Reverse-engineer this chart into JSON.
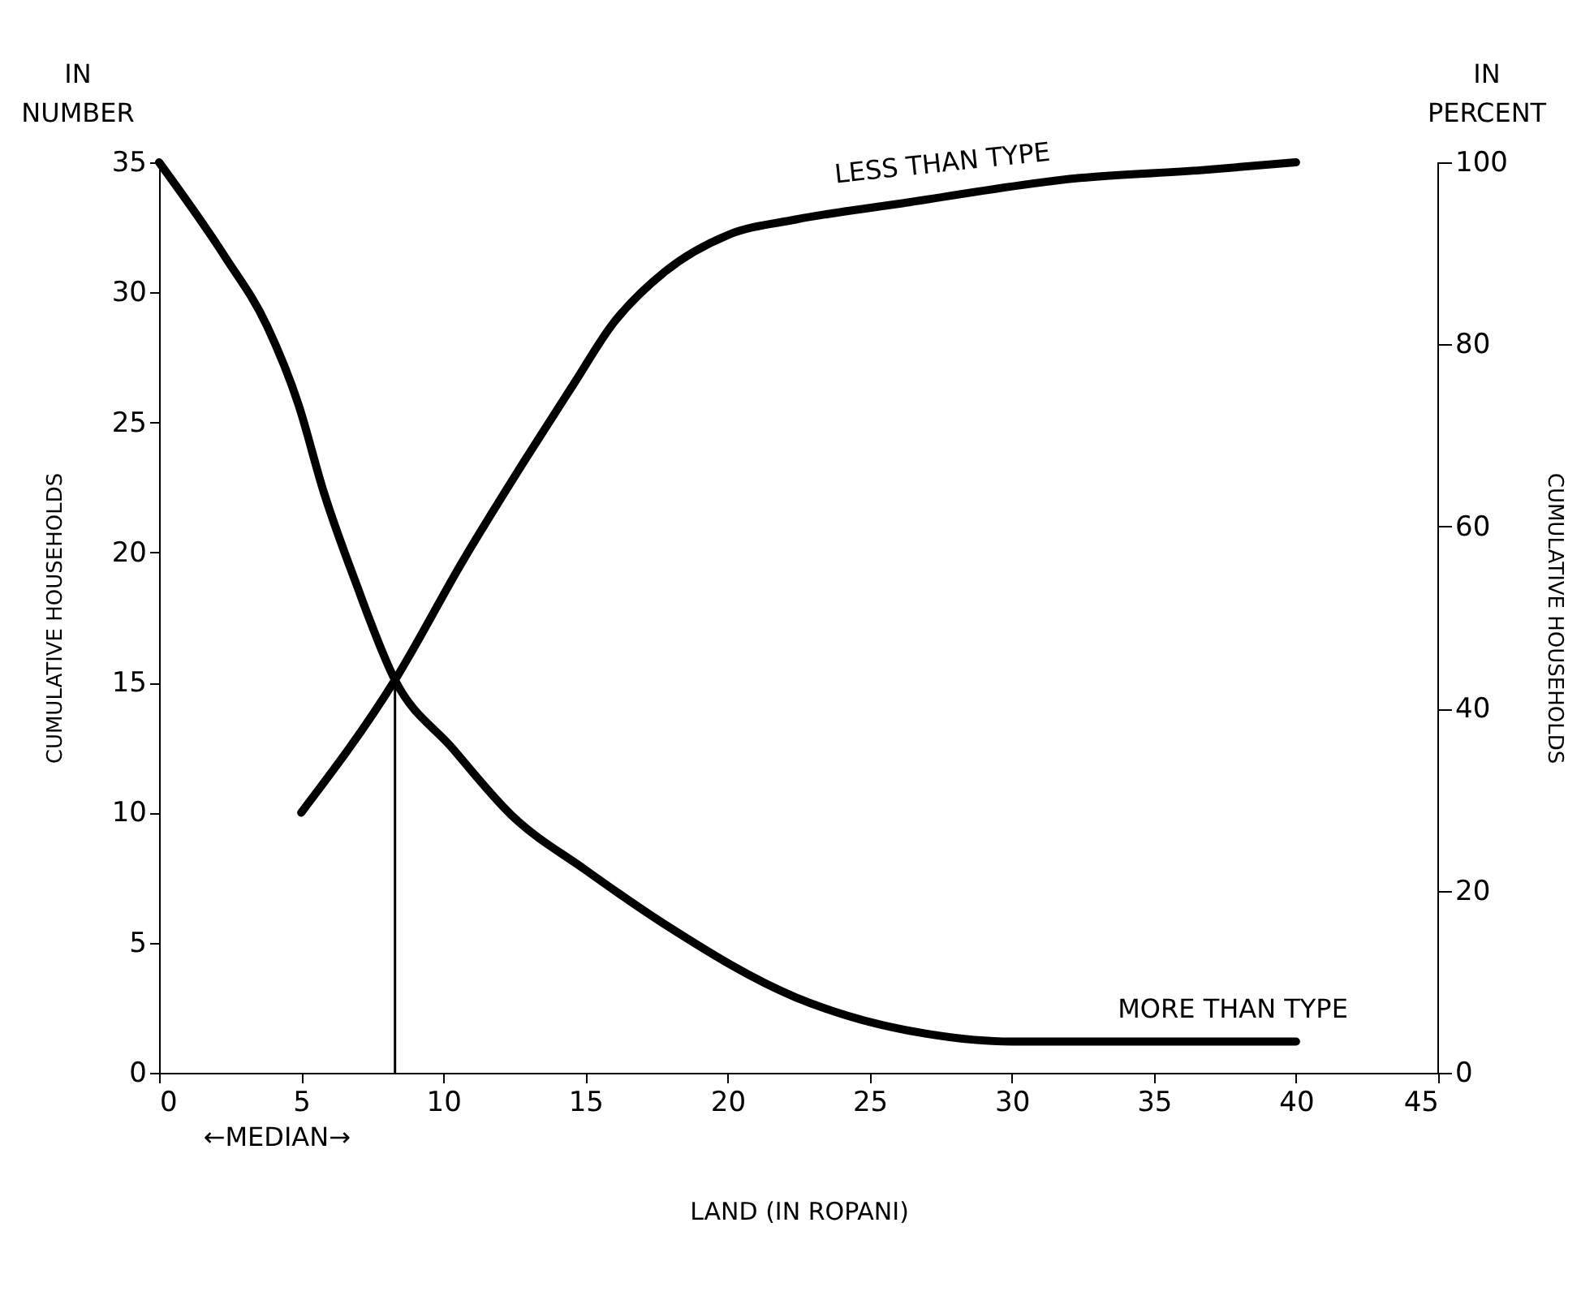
{
  "chart_data": {
    "type": "line",
    "xlabel": "LAND (IN ROPANI)",
    "ylabel": "CUMULATIVE HOUSEHOLDS",
    "y2label": "CUMULATIVE HOUSEHOLDS",
    "annotations": [
      "IN NUMBER",
      "IN PERCENT"
    ],
    "series": [
      {
        "name": "LESS THAN TYPE",
        "color": "#000000",
        "x": [
          5,
          8.3,
          10.7,
          12.9,
          14.6,
          15.9,
          17.8,
          20,
          22.4,
          26,
          32.4,
          36.7,
          40
        ],
        "values": [
          10,
          15.1,
          19.7,
          23.6,
          26.5,
          28.7,
          30.8,
          32.2,
          32.8,
          33.4,
          34.4,
          34.7,
          35
        ]
      },
      {
        "name": "MORE THAN TYPE",
        "color": "#000000",
        "x": [
          0,
          2.3,
          3.8,
          4.9,
          5.8,
          6.9,
          8.3,
          10.3,
          12.4,
          15,
          17.8,
          22.4,
          24.2,
          27,
          30,
          35,
          40
        ],
        "values": [
          35,
          31.4,
          28.7,
          25.7,
          22.3,
          18.9,
          15.1,
          12.5,
          9.9,
          7.8,
          5.7,
          2.9,
          2.2,
          1.5,
          1.2,
          1.2,
          1.2
        ]
      }
    ],
    "ref_lines": [
      {
        "axis": "x",
        "value": 8.3,
        "label": "←MEDIAN→"
      }
    ],
    "xlim": [
      0,
      45
    ],
    "xticks": [
      0,
      5,
      10,
      15,
      20,
      25,
      30,
      35,
      40,
      45
    ],
    "ylim": [
      0,
      35
    ],
    "yticks": [
      0,
      5,
      10,
      15,
      20,
      25,
      30,
      35
    ],
    "y2lim": [
      0,
      100
    ],
    "y2ticks": [
      0,
      20,
      40,
      60,
      80,
      100
    ],
    "legend": false,
    "grid": false,
    "marker": "none",
    "line_style": "solid"
  }
}
